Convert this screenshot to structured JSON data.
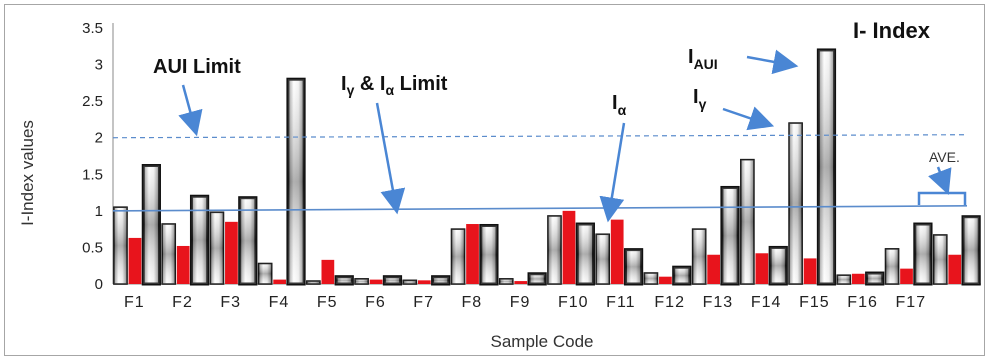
{
  "chart_data": {
    "type": "bar",
    "title": "I- Index",
    "xlabel": "Sample Code",
    "ylabel": "I-Index values",
    "ylim": [
      0,
      3.5
    ],
    "yticks": [
      "0",
      "0.5",
      "1",
      "1.5",
      "2",
      "2.5",
      "3",
      "3.5"
    ],
    "categories": [
      "F1",
      "F2",
      "F3",
      "F4",
      "F5",
      "F6",
      "F7",
      "F8",
      "F9",
      "F10",
      "F11",
      "F12",
      "F13",
      "F14",
      "F15",
      "F16",
      "F17",
      "AVE."
    ],
    "series": [
      {
        "key": "gamma",
        "values": [
          1.05,
          0.82,
          0.98,
          0.28,
          0.04,
          0.07,
          0.05,
          0.75,
          0.07,
          0.93,
          0.68,
          0.15,
          0.75,
          1.7,
          2.2,
          0.12,
          0.48,
          0.67
        ]
      },
      {
        "key": "alpha",
        "values": [
          0.63,
          0.52,
          0.85,
          0.06,
          0.33,
          0.06,
          0.05,
          0.82,
          0.04,
          1.0,
          0.88,
          0.1,
          0.4,
          0.42,
          0.35,
          0.14,
          0.21,
          0.4
        ]
      },
      {
        "key": "aui",
        "values": [
          1.62,
          1.2,
          1.18,
          2.8,
          0.1,
          0.1,
          0.1,
          0.8,
          0.14,
          0.82,
          0.47,
          0.23,
          1.32,
          0.5,
          3.2,
          0.15,
          0.82,
          0.92
        ]
      }
    ],
    "reference_lines": [
      {
        "name": "AUI Limit",
        "value": 2.0,
        "style": "dashed"
      },
      {
        "name": "Iγ & Iα Limit",
        "value": 1.0,
        "style": "solid"
      }
    ],
    "annotations": {
      "aui_limit": "AUI Limit",
      "limit_prefix_1": "I",
      "limit_sub_1": "γ",
      "limit_mid": " & I",
      "limit_sub_2": "α",
      "limit_suffix": " Limit",
      "alpha_base": "I",
      "alpha_sub": "α",
      "aui_base": "I",
      "aui_sub": "AUI",
      "gamma_base": "I",
      "gamma_sub": "γ",
      "ave": "AVE."
    },
    "colors": {
      "alpha": "#e8141c",
      "limit": "#5b8ccc",
      "arrow": "#4a86d4"
    },
    "grid": false
  }
}
